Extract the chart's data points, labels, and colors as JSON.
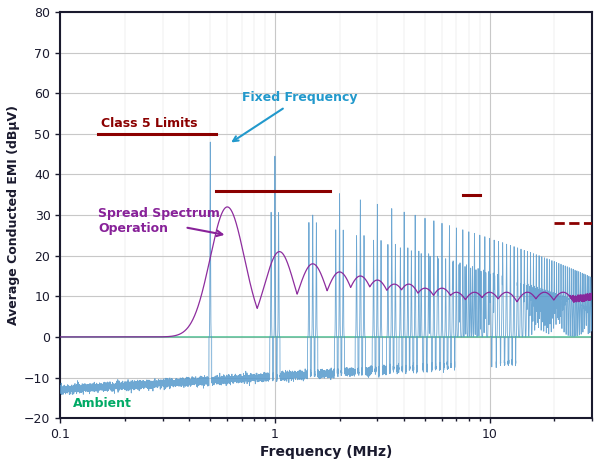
{
  "xlabel": "Frequency (MHz)",
  "ylabel": "Average Conducted EMI (dBµV)",
  "xlim_log": [
    0.1,
    30
  ],
  "ylim": [
    -20,
    80
  ],
  "yticks": [
    -20,
    -10,
    0,
    10,
    20,
    30,
    40,
    50,
    60,
    70,
    80
  ],
  "bg_color": "#ffffff",
  "grid_major_color": "#c8c8c8",
  "grid_minor_color": "#e0e0e0",
  "axis_color": "#1a1a2e",
  "fixed_freq_color": "#5599cc",
  "spread_spectrum_color": "#882299",
  "ambient_color": "#00aa66",
  "class5_limit_color": "#8B0000",
  "annotation_ff_color": "#2299cc",
  "annotation_ss_color": "#882299",
  "annotation_amb_color": "#00aa66",
  "class5_limit_seg1": [
    0.15,
    0.53,
    50.0
  ],
  "class5_limit_seg2": [
    0.53,
    1.8,
    36.0
  ],
  "class5_limit_seg3": [
    7.5,
    9.0,
    35.0
  ],
  "class5_limit_seg4_dashed": [
    20.0,
    30.0,
    28.0
  ]
}
